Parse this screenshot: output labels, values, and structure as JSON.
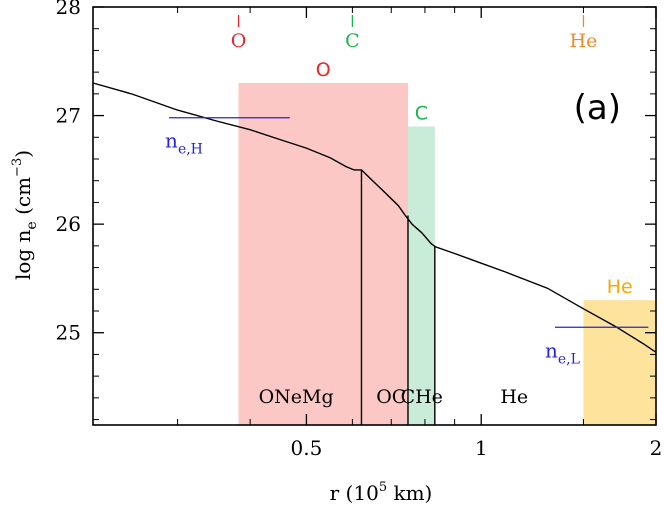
{
  "chart_data": {
    "type": "line",
    "panel_label": "(a)",
    "xlabel": {
      "main": "r (10",
      "sup": "5",
      "tail": " km)"
    },
    "ylabel": {
      "main": "log n",
      "sub": "e",
      "mid": " (cm",
      "sup": "−3",
      "tail": ")"
    },
    "x_scale": "log",
    "xlim": [
      0.2145,
      2.0
    ],
    "ylim": [
      24.15,
      28.0
    ],
    "x_ticks": [
      {
        "value": 0.5,
        "label": "0.5"
      },
      {
        "value": 1,
        "label": "1"
      },
      {
        "value": 2,
        "label": "2"
      }
    ],
    "y_ticks": [
      {
        "value": 25,
        "label": "25"
      },
      {
        "value": 26,
        "label": "26"
      },
      {
        "value": 27,
        "label": "27"
      },
      {
        "value": 28,
        "label": "28"
      }
    ],
    "colors": {
      "O_band": "#fbc8c5",
      "C_band": "#c9ecd8",
      "He_band": "#fde39c",
      "O_text": "#e8262b",
      "C_text": "#19b44a",
      "He_top_text": "#f08a24",
      "He_band_text": "#f5a800",
      "ne_markers": "#2525d6",
      "curve": "#000000"
    },
    "composition_bands": [
      {
        "name": "O",
        "label": "O",
        "x_range": [
          0.382,
          0.748
        ],
        "top": 27.3,
        "color_key": "O_band",
        "text_key": "O_text"
      },
      {
        "name": "C",
        "label": "C",
        "x_range": [
          0.748,
          0.832
        ],
        "top": 26.9,
        "color_key": "C_band",
        "text_key": "C_text"
      },
      {
        "name": "He",
        "label": "He",
        "x_range": [
          1.5,
          2.0
        ],
        "top": 25.3,
        "color_key": "He_band",
        "text_key": "He_band_text"
      }
    ],
    "top_markers": [
      {
        "label": "O",
        "x": 0.382,
        "color_key": "O_text"
      },
      {
        "label": "C",
        "x": 0.6,
        "color_key": "C_text"
      },
      {
        "label": "He",
        "x": 1.5,
        "color_key": "He_top_text"
      }
    ],
    "series": [
      {
        "name": "log ne",
        "x": [
          0.2145,
          0.25,
          0.3,
          0.35,
          0.4,
          0.45,
          0.5,
          0.55,
          0.585,
          0.604,
          0.622,
          0.65,
          0.68,
          0.72,
          0.74,
          0.76,
          0.79,
          0.82,
          0.835,
          0.9,
          1.0,
          1.1,
          1.3,
          1.5,
          1.7,
          1.9,
          2.0
        ],
        "y": [
          27.3,
          27.2,
          27.05,
          26.95,
          26.87,
          26.78,
          26.7,
          26.61,
          26.53,
          26.5,
          26.5,
          26.4,
          26.3,
          26.17,
          26.08,
          26.0,
          25.92,
          25.82,
          25.79,
          25.73,
          25.64,
          25.56,
          25.41,
          25.22,
          25.06,
          24.9,
          24.82
        ]
      }
    ],
    "vertical_lines": [
      {
        "x": 0.622,
        "y_top": 26.5
      },
      {
        "x": 0.748,
        "y_top": 26.08
      },
      {
        "x": 0.832,
        "y_top": 25.8
      }
    ],
    "ne_markers": [
      {
        "id": "neH",
        "base": "n",
        "sub": "e,H",
        "x_range": [
          0.29,
          0.468
        ],
        "y": 26.98
      },
      {
        "id": "neL",
        "base": "n",
        "sub": "e,L",
        "x_range": [
          1.34,
          1.94
        ],
        "y": 25.05
      }
    ],
    "region_labels": [
      {
        "text": "ONeMg",
        "x": 0.48
      },
      {
        "text": "OC",
        "x": 0.7
      },
      {
        "text": "CHe",
        "x": 0.79
      },
      {
        "text": "He",
        "x": 1.14
      }
    ]
  }
}
